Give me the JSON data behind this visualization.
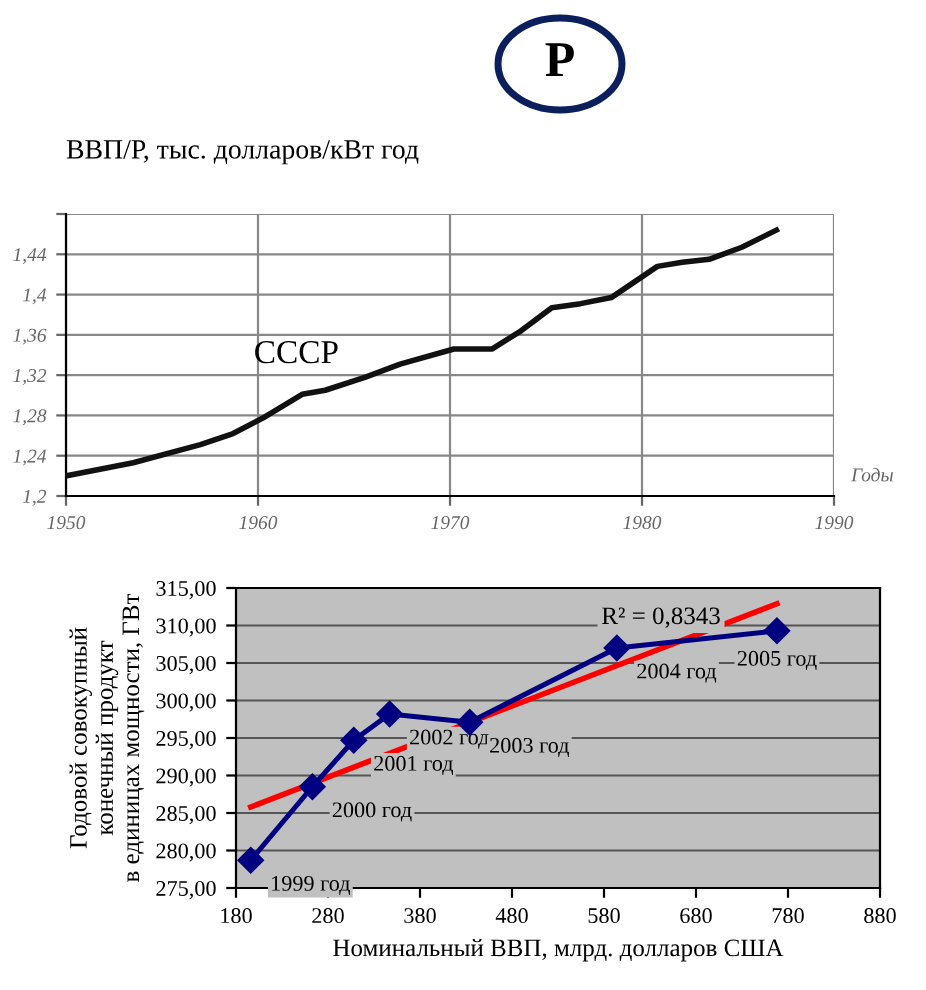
{
  "chart_data": [
    {
      "type": "line",
      "title": "ВВП/Р, тыс. долларов/кВт год",
      "xlabel": "Годы",
      "annotations": [
        "Р",
        "СССР"
      ],
      "x": [
        1950,
        1953.5,
        1957,
        1958.7,
        1960.4,
        1962.3,
        1963.5,
        1965.6,
        1967.4,
        1970.2,
        1972.2,
        1973.7,
        1975.3,
        1976.8,
        1978.4,
        1980.8,
        1982.1,
        1983.5,
        1985.2,
        1987
      ],
      "series": [
        {
          "color": "#111111",
          "values": [
            1.22,
            1.233,
            1.251,
            1.262,
            1.279,
            1.301,
            1.305,
            1.318,
            1.331,
            1.346,
            1.346,
            1.364,
            1.387,
            1.391,
            1.397,
            1.428,
            1.432,
            1.435,
            1.447,
            1.464
          ]
        }
      ],
      "xlim": [
        1950,
        1990
      ],
      "xticks": [
        1950,
        1960,
        1970,
        1980,
        1990
      ],
      "ylim": [
        1.2,
        1.48
      ],
      "yticks": [
        {
          "value": 1.2,
          "label": "1,2"
        },
        {
          "value": 1.24,
          "label": "1,24"
        },
        {
          "value": 1.28,
          "label": "1,28"
        },
        {
          "value": 1.32,
          "label": "1,32"
        },
        {
          "value": 1.36,
          "label": "1,36"
        },
        {
          "value": 1.4,
          "label": "1,4"
        },
        {
          "value": 1.44,
          "label": "1,44"
        },
        {
          "value": 1.48,
          "label": null
        }
      ],
      "grid": true,
      "marker": "none",
      "line_style": "solid",
      "legend": false
    },
    {
      "type": "line",
      "xlabel": "Номинальный ВВП, млрд. долларов США",
      "ylabel": "Годовой совокупный\nконечный продукт\nв единицах мощности, ГВт",
      "x": [
        196,
        263,
        308,
        347,
        434,
        594,
        768
      ],
      "series": [
        {
          "color": "#000080",
          "marker": "diamond",
          "values": [
            278.7,
            288.5,
            294.7,
            298.2,
            297.1,
            307.0,
            309.3
          ]
        },
        {
          "color": "#ff0000",
          "marker": "none",
          "x": [
            196,
            768
          ],
          "values": [
            285.8,
            312.9
          ]
        }
      ],
      "annotations": [
        {
          "text": "1999 год",
          "x": 196,
          "y": 278.7
        },
        {
          "text": "2000 год",
          "x": 263,
          "y": 288.5
        },
        {
          "text": "2001 год",
          "x": 308,
          "y": 294.7
        },
        {
          "text": "2002 год",
          "x": 347,
          "y": 298.2
        },
        {
          "text": "2003 год",
          "x": 434,
          "y": 297.1
        },
        {
          "text": "2004 год",
          "x": 594,
          "y": 307.0
        },
        {
          "text": "2005 год",
          "x": 768,
          "y": 309.3
        },
        "R² = 0,8343"
      ],
      "xlim": [
        180,
        880
      ],
      "xticks": [
        180,
        280,
        380,
        480,
        580,
        680,
        780,
        880
      ],
      "ylim": [
        275,
        315
      ],
      "yticks": [
        {
          "value": 275,
          "label": "275,00"
        },
        {
          "value": 280,
          "label": "280,00"
        },
        {
          "value": 285,
          "label": "285,00"
        },
        {
          "value": 290,
          "label": "290,00"
        },
        {
          "value": 295,
          "label": "295,00"
        },
        {
          "value": 300,
          "label": "300,00"
        },
        {
          "value": 305,
          "label": "305,00"
        },
        {
          "value": 310,
          "label": "310,00"
        },
        {
          "value": 315,
          "label": "315,00"
        }
      ],
      "grid": "y",
      "line_style": "solid",
      "legend": false
    }
  ]
}
